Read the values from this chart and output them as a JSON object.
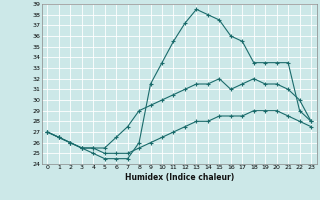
{
  "xlabel": "Humidex (Indice chaleur)",
  "bg_color": "#cce8e8",
  "grid_color": "#b0d4d4",
  "line_color": "#1a6b6b",
  "xlim": [
    -0.5,
    23.5
  ],
  "ylim": [
    24,
    39
  ],
  "xticks": [
    0,
    1,
    2,
    3,
    4,
    5,
    6,
    7,
    8,
    9,
    10,
    11,
    12,
    13,
    14,
    15,
    16,
    17,
    18,
    19,
    20,
    21,
    22,
    23
  ],
  "yticks": [
    24,
    25,
    26,
    27,
    28,
    29,
    30,
    31,
    32,
    33,
    34,
    35,
    36,
    37,
    38,
    39
  ],
  "curve1_x": [
    0,
    1,
    2,
    3,
    4,
    5,
    6,
    7,
    8,
    9,
    10,
    11,
    12,
    13,
    14,
    15,
    16,
    17,
    18,
    19,
    20,
    21,
    22,
    23
  ],
  "curve1_y": [
    27,
    26.5,
    26,
    25.5,
    25,
    24.5,
    24.5,
    24.5,
    26,
    31.5,
    33.5,
    35.5,
    37.2,
    38.5,
    38.0,
    37.5,
    36,
    35.5,
    33.5,
    33.5,
    33.5,
    33.5,
    29,
    28
  ],
  "curve2_x": [
    0,
    1,
    2,
    3,
    4,
    5,
    6,
    7,
    8,
    9,
    10,
    11,
    12,
    13,
    14,
    15,
    16,
    17,
    18,
    19,
    20,
    21,
    22,
    23
  ],
  "curve2_y": [
    27,
    26.5,
    26,
    25.5,
    25.5,
    25.5,
    26.5,
    27.5,
    29,
    29.5,
    30,
    30.5,
    31,
    31.5,
    31.5,
    32,
    31,
    31.5,
    32,
    31.5,
    31.5,
    31,
    30,
    28
  ],
  "curve3_x": [
    0,
    1,
    2,
    3,
    4,
    5,
    6,
    7,
    8,
    9,
    10,
    11,
    12,
    13,
    14,
    15,
    16,
    17,
    18,
    19,
    20,
    21,
    22,
    23
  ],
  "curve3_y": [
    27,
    26.5,
    26,
    25.5,
    25.5,
    25,
    25,
    25,
    25.5,
    26,
    26.5,
    27,
    27.5,
    28,
    28,
    28.5,
    28.5,
    28.5,
    29,
    29,
    29,
    28.5,
    28,
    27.5
  ]
}
